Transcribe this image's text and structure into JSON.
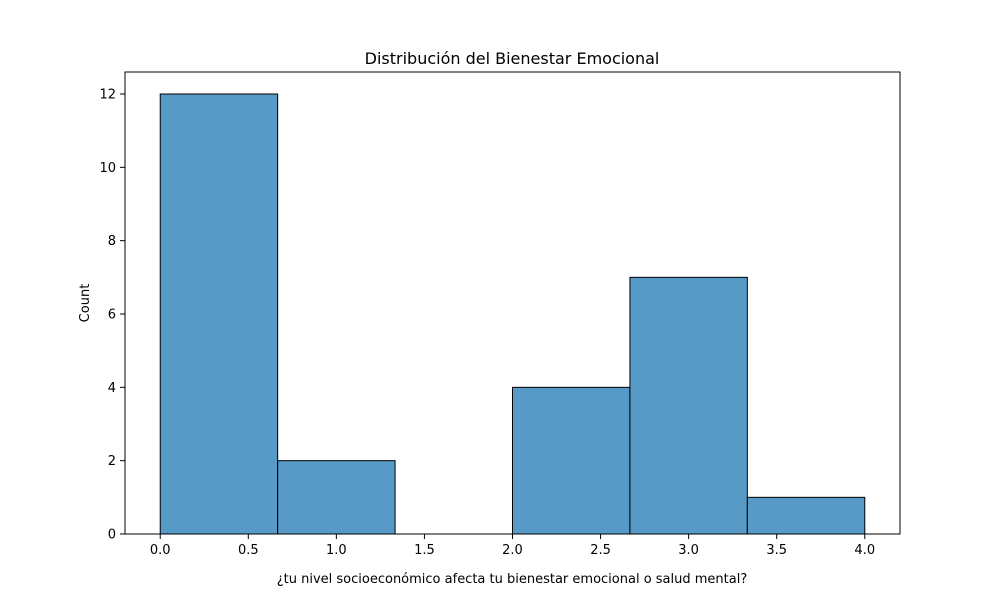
{
  "chart_data": {
    "type": "bar",
    "subtype": "histogram",
    "title": "Distribución del Bienestar Emocional",
    "xlabel": "¿tu nivel socioeconómico afecta tu bienestar emocional o salud mental?",
    "ylabel": "Count",
    "xlim": [
      -0.2,
      4.2
    ],
    "ylim": [
      0,
      12.6
    ],
    "xticks": [
      0.0,
      0.5,
      1.0,
      1.5,
      2.0,
      2.5,
      3.0,
      3.5,
      4.0
    ],
    "xtick_labels": [
      "0.0",
      "0.5",
      "1.0",
      "1.5",
      "2.0",
      "2.5",
      "3.0",
      "3.5",
      "4.0"
    ],
    "yticks": [
      0,
      2,
      4,
      6,
      8,
      10,
      12
    ],
    "ytick_labels": [
      "0",
      "2",
      "4",
      "6",
      "8",
      "10",
      "12"
    ],
    "bins": [
      {
        "x0": 0.0,
        "x1": 0.6667,
        "count": 12
      },
      {
        "x0": 0.6667,
        "x1": 1.3333,
        "count": 2
      },
      {
        "x0": 1.3333,
        "x1": 2.0,
        "count": 0
      },
      {
        "x0": 2.0,
        "x1": 2.6667,
        "count": 4
      },
      {
        "x0": 2.6667,
        "x1": 3.3333,
        "count": 7
      },
      {
        "x0": 3.3333,
        "x1": 4.0,
        "count": 1
      }
    ],
    "bar_color": "#5799c7",
    "edge_color": "#000000",
    "grid": false,
    "legend": "none"
  }
}
